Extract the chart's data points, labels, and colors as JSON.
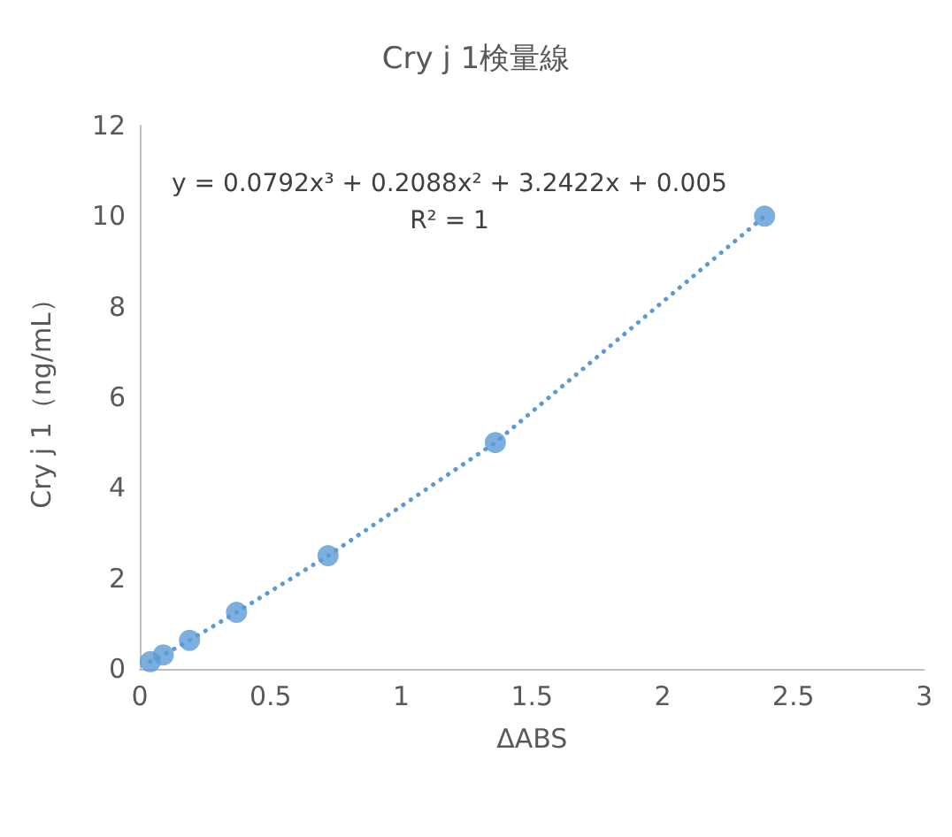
{
  "chart_data": {
    "type": "scatter",
    "title": "Cry j 1検量線",
    "xlabel": "ΔABS",
    "ylabel": "Cry j 1（ng/mL）",
    "annotations": [
      "y = 0.0792x³ + 0.2088x² + 3.2422x + 0.005",
      "R² = 1"
    ],
    "xlim": [
      0,
      3
    ],
    "xticks": [
      0,
      0.5,
      1,
      1.5,
      2,
      2.5,
      3
    ],
    "ylim": [
      0,
      12
    ],
    "yticks": [
      0,
      2,
      4,
      6,
      8,
      10,
      12
    ],
    "grid": false,
    "series": [
      {
        "color": "#5b9bd5",
        "marker": "circle",
        "x": [
          0.04,
          0.09,
          0.19,
          0.37,
          0.72,
          1.36,
          2.39
        ],
        "values": [
          0.16,
          0.31,
          0.63,
          1.25,
          2.5,
          5,
          10
        ]
      },
      {
        "type": "line",
        "color": "#5b9bd5",
        "marker": "none",
        "line_style": "dotted",
        "x": [
          0.04,
          0.09,
          0.19,
          0.37,
          0.72,
          1.36,
          2.39
        ],
        "values": [
          0.16,
          0.31,
          0.63,
          1.25,
          2.5,
          5,
          10
        ]
      }
    ]
  }
}
